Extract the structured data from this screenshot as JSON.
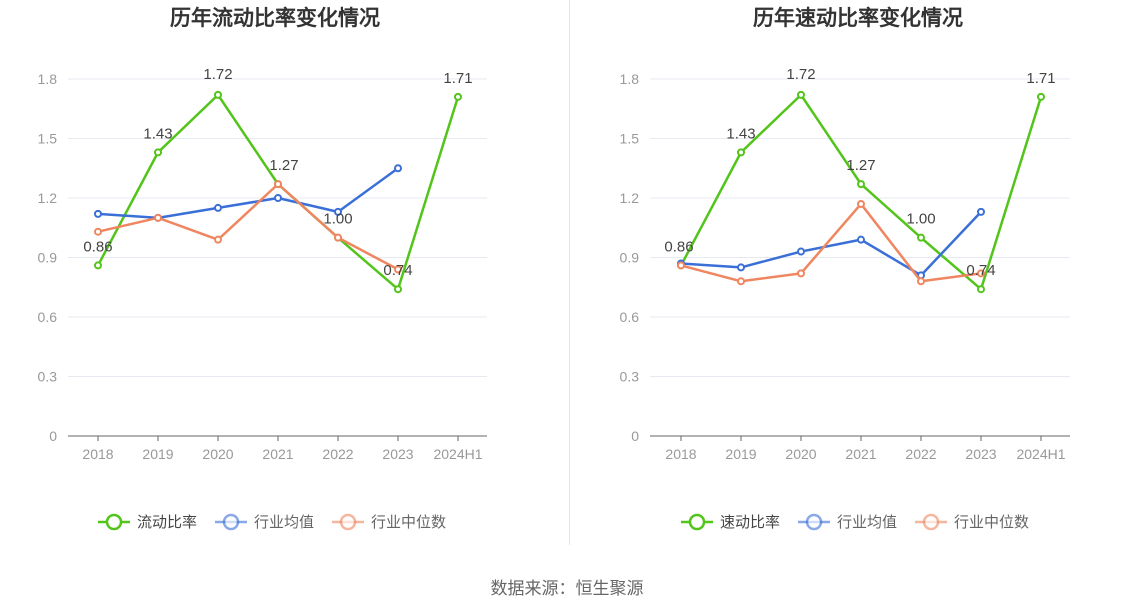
{
  "source_label": "数据来源：恒生聚源",
  "colors": {
    "primary": "#52c41a",
    "avg": "#3b6fd8",
    "median": "#f08660",
    "axis_text": "#999999",
    "grid": "#e6e9f0",
    "title": "#333333",
    "legend_text": "#666666"
  },
  "chart_data": [
    {
      "type": "line",
      "title": "历年流动比率变化情况",
      "categories": [
        "2018",
        "2019",
        "2020",
        "2021",
        "2022",
        "2023",
        "2024H1"
      ],
      "ylim": [
        0,
        1.8
      ],
      "yticks": [
        "0",
        "0.3",
        "0.6",
        "0.9",
        "1.2",
        "1.5",
        "1.8"
      ],
      "series": [
        {
          "name": "流动比率",
          "role": "primary",
          "values": [
            0.86,
            1.43,
            1.72,
            1.27,
            1.0,
            0.74,
            1.71
          ],
          "labels": [
            "0.86",
            "1.43",
            "1.72",
            "1.27",
            "1.00",
            "0.74",
            "1.71"
          ]
        },
        {
          "name": "行业均值",
          "role": "avg",
          "values": [
            1.12,
            1.1,
            1.15,
            1.2,
            1.13,
            1.35,
            null
          ]
        },
        {
          "name": "行业中位数",
          "role": "median",
          "values": [
            1.03,
            1.1,
            0.99,
            1.27,
            1.0,
            0.84,
            null
          ]
        }
      ]
    },
    {
      "type": "line",
      "title": "历年速动比率变化情况",
      "categories": [
        "2018",
        "2019",
        "2020",
        "2021",
        "2022",
        "2023",
        "2024H1"
      ],
      "ylim": [
        0,
        1.8
      ],
      "yticks": [
        "0",
        "0.3",
        "0.6",
        "0.9",
        "1.2",
        "1.5",
        "1.8"
      ],
      "series": [
        {
          "name": "速动比率",
          "role": "primary",
          "values": [
            0.86,
            1.43,
            1.72,
            1.27,
            1.0,
            0.74,
            1.71
          ],
          "labels": [
            "0.86",
            "1.43",
            "1.72",
            "1.27",
            "1.00",
            "0.74",
            "1.71"
          ]
        },
        {
          "name": "行业均值",
          "role": "avg",
          "values": [
            0.87,
            0.85,
            0.93,
            0.99,
            0.81,
            1.13,
            null
          ]
        },
        {
          "name": "行业中位数",
          "role": "median",
          "values": [
            0.86,
            0.78,
            0.82,
            1.17,
            0.78,
            0.82,
            null
          ]
        }
      ]
    }
  ]
}
